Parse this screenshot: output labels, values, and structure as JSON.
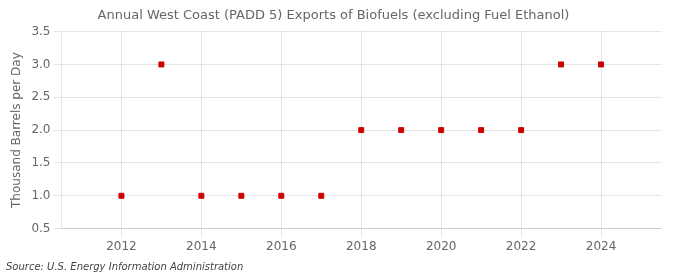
{
  "chart_data": {
    "type": "scatter",
    "title": "Annual West Coast (PADD 5) Exports of Biofuels (excluding Fuel Ethanol)",
    "ylabel": "Thousand Barrels per Day",
    "annotation": "Source: U.S. Energy Information Administration",
    "x": [
      2012,
      2013,
      2014,
      2015,
      2016,
      2017,
      2018,
      2019,
      2020,
      2021,
      2022,
      2023,
      2024
    ],
    "values": [
      1.0,
      3.0,
      1.0,
      1.0,
      1.0,
      1.0,
      2.0,
      2.0,
      2.0,
      2.0,
      2.0,
      3.0,
      3.0
    ],
    "color": "#cc0000",
    "marker": "square",
    "xlim": [
      2010.5,
      2025.5
    ],
    "ylim": [
      0.5,
      3.5
    ],
    "xticks": [
      2012,
      2014,
      2016,
      2018,
      2020,
      2022,
      2024
    ],
    "yticks": [
      0.5,
      {
        "value": 1.0,
        "label": "1.0"
      },
      1.5,
      {
        "value": 2.0,
        "label": "2.0"
      },
      2.5,
      {
        "value": 3.0,
        "label": "3.0"
      },
      3.5
    ],
    "grid": true
  }
}
